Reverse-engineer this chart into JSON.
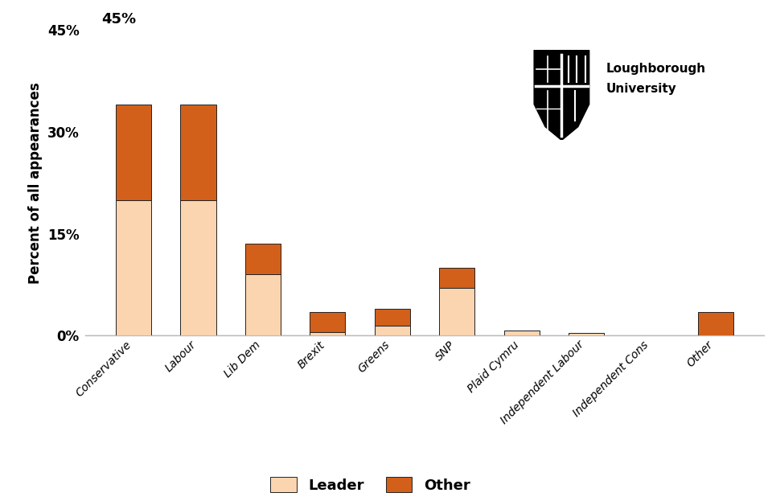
{
  "categories": [
    "Conservative",
    "Labour",
    "Lib Dem",
    "Brexit",
    "Greens",
    "SNP",
    "Plaid Cymru",
    "Independent Labour",
    "Independent Cons",
    "Other"
  ],
  "leader_values": [
    20.0,
    20.0,
    9.0,
    0.5,
    1.5,
    7.0,
    0.8,
    0.4,
    0.0,
    0.0
  ],
  "other_values": [
    14.0,
    14.0,
    4.5,
    3.0,
    2.5,
    3.0,
    0.0,
    0.0,
    0.0,
    3.5
  ],
  "leader_color": "#FAD5B0",
  "other_color": "#D2601A",
  "bar_edge_color": "#222222",
  "bar_edge_width": 0.7,
  "ylabel": "Percent of all appearances",
  "yticks": [
    0,
    15,
    30,
    45
  ],
  "ytick_labels": [
    "0%",
    "15%",
    "30%",
    "45%"
  ],
  "ylim": [
    0,
    45
  ],
  "background_color": "#ffffff",
  "legend_leader": "Leader",
  "legend_other": "Other",
  "top_label": "45%",
  "bar_width": 0.55
}
